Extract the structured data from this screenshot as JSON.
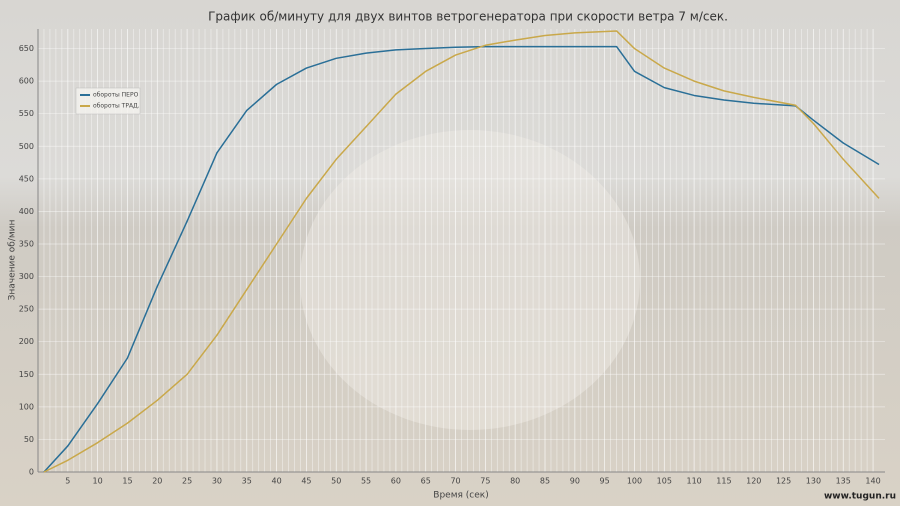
{
  "chart_data": {
    "type": "line",
    "title": "График об/минуту для двух винтов ветрогенератора при скорости ветра 7 м/сек.",
    "x_label": "Время (сек)",
    "y_label": "Значение об/мин",
    "x": [
      1,
      5,
      10,
      15,
      20,
      25,
      30,
      35,
      40,
      45,
      50,
      55,
      60,
      65,
      70,
      75,
      80,
      85,
      90,
      97,
      100,
      105,
      110,
      115,
      120,
      127,
      130,
      135,
      141
    ],
    "series": [
      {
        "name": "обороты ПЕРО",
        "color": "#2a6f97",
        "values": [
          0,
          40,
          105,
          175,
          285,
          385,
          490,
          555,
          595,
          620,
          635,
          643,
          648,
          650,
          652,
          653,
          653,
          653,
          653,
          653,
          615,
          590,
          578,
          571,
          566,
          562,
          540,
          505,
          472
        ]
      },
      {
        "name": "обороты ТРАД.",
        "color": "#c9a84a",
        "values": [
          0,
          18,
          45,
          75,
          110,
          150,
          210,
          280,
          350,
          420,
          480,
          530,
          580,
          615,
          640,
          655,
          663,
          670,
          674,
          677,
          650,
          620,
          600,
          585,
          575,
          563,
          535,
          480,
          420
        ]
      }
    ],
    "xlim": [
      0,
      142
    ],
    "ylim": [
      0,
      680
    ],
    "xticks": [
      5,
      10,
      15,
      20,
      25,
      30,
      35,
      40,
      45,
      50,
      55,
      60,
      65,
      70,
      75,
      80,
      85,
      90,
      95,
      100,
      105,
      110,
      115,
      120,
      125,
      130,
      135,
      140
    ],
    "yticks": [
      0,
      50,
      100,
      150,
      200,
      250,
      300,
      350,
      400,
      450,
      500,
      550,
      600,
      650
    ],
    "grid": true,
    "legend": "top-left",
    "watermark": "www.tugun.ru"
  }
}
